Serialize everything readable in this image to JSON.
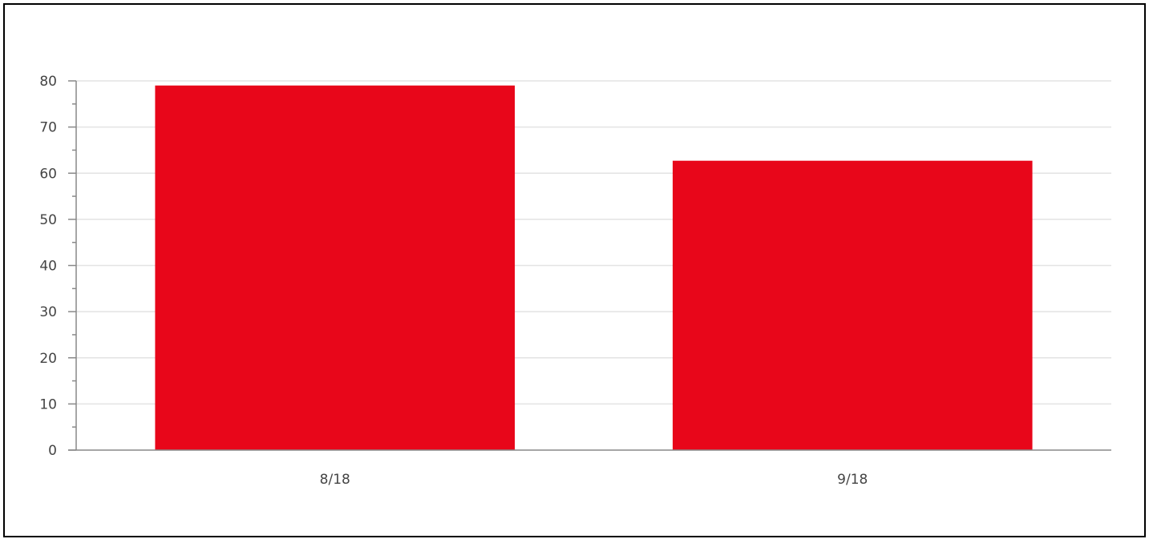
{
  "chart_data": {
    "type": "bar",
    "categories": [
      "8/18",
      "9/18"
    ],
    "values": [
      79,
      62.7
    ],
    "title": "",
    "xlabel": "",
    "ylabel": "",
    "ylim": [
      0,
      80
    ],
    "yticks": [
      0,
      10,
      20,
      30,
      40,
      50,
      60,
      70,
      80
    ],
    "grid": true,
    "legend": "none",
    "colors": {
      "bar": "#e8061a",
      "grid": "#e3e3e3",
      "axis": "#888888",
      "tick_text": "#444444"
    }
  }
}
